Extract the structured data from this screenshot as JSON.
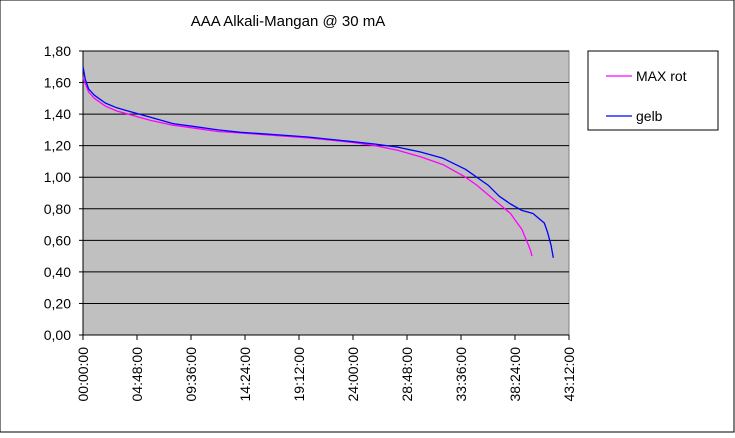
{
  "chart_data": {
    "type": "line",
    "title": "AAA Alkali-Mangan @ 30 mA",
    "xlabel": "",
    "ylabel": "",
    "x_unit": "hours",
    "xlim": [
      0,
      43.2
    ],
    "ylim": [
      0,
      1.8
    ],
    "x_ticks": [
      0,
      4.8,
      9.6,
      14.4,
      19.2,
      24.0,
      28.8,
      33.6,
      38.4,
      43.2
    ],
    "x_tick_labels": [
      "00:00:00",
      "04:48:00",
      "09:36:00",
      "14:24:00",
      "19:12:00",
      "24:00:00",
      "28:48:00",
      "33:36:00",
      "38:24:00",
      "43:12:00"
    ],
    "y_ticks": [
      0,
      0.2,
      0.4,
      0.6,
      0.8,
      1.0,
      1.2,
      1.4,
      1.6,
      1.8
    ],
    "y_tick_labels": [
      "0,00",
      "0,20",
      "0,40",
      "0,60",
      "0,80",
      "1,00",
      "1,20",
      "1,40",
      "1,60",
      "1,80"
    ],
    "grid": "horizontal",
    "plot_background": "#c0c0c0",
    "legend_position": "right",
    "series": [
      {
        "name": "MAX rot",
        "color": "#ff00ff",
        "x": [
          0,
          0.5,
          1,
          2,
          3,
          4,
          6,
          8,
          10,
          12,
          14,
          16,
          18,
          20,
          22,
          24,
          26,
          28,
          30,
          32,
          34,
          35,
          36,
          37,
          38,
          38.5,
          39,
          39.3,
          39.6,
          39.8,
          39.9
        ],
        "y": [
          1.63,
          1.54,
          1.5,
          1.45,
          1.42,
          1.4,
          1.36,
          1.33,
          1.31,
          1.29,
          1.28,
          1.27,
          1.26,
          1.25,
          1.235,
          1.22,
          1.2,
          1.17,
          1.13,
          1.08,
          1.0,
          0.95,
          0.89,
          0.83,
          0.77,
          0.72,
          0.67,
          0.62,
          0.57,
          0.53,
          0.5
        ]
      },
      {
        "name": "gelb",
        "color": "#0000ff",
        "x": [
          0,
          0.2,
          0.5,
          1,
          2,
          3,
          4,
          6,
          8,
          10,
          12,
          14,
          16,
          18,
          20,
          22,
          24,
          26,
          28,
          30,
          32,
          34,
          36,
          37,
          38,
          39,
          40,
          40.5,
          41,
          41.3,
          41.6,
          41.8
        ],
        "y": [
          1.7,
          1.62,
          1.56,
          1.52,
          1.47,
          1.44,
          1.42,
          1.38,
          1.34,
          1.32,
          1.3,
          1.285,
          1.275,
          1.265,
          1.255,
          1.24,
          1.225,
          1.21,
          1.19,
          1.16,
          1.12,
          1.05,
          0.95,
          0.88,
          0.83,
          0.79,
          0.77,
          0.74,
          0.71,
          0.65,
          0.57,
          0.49
        ]
      }
    ]
  }
}
